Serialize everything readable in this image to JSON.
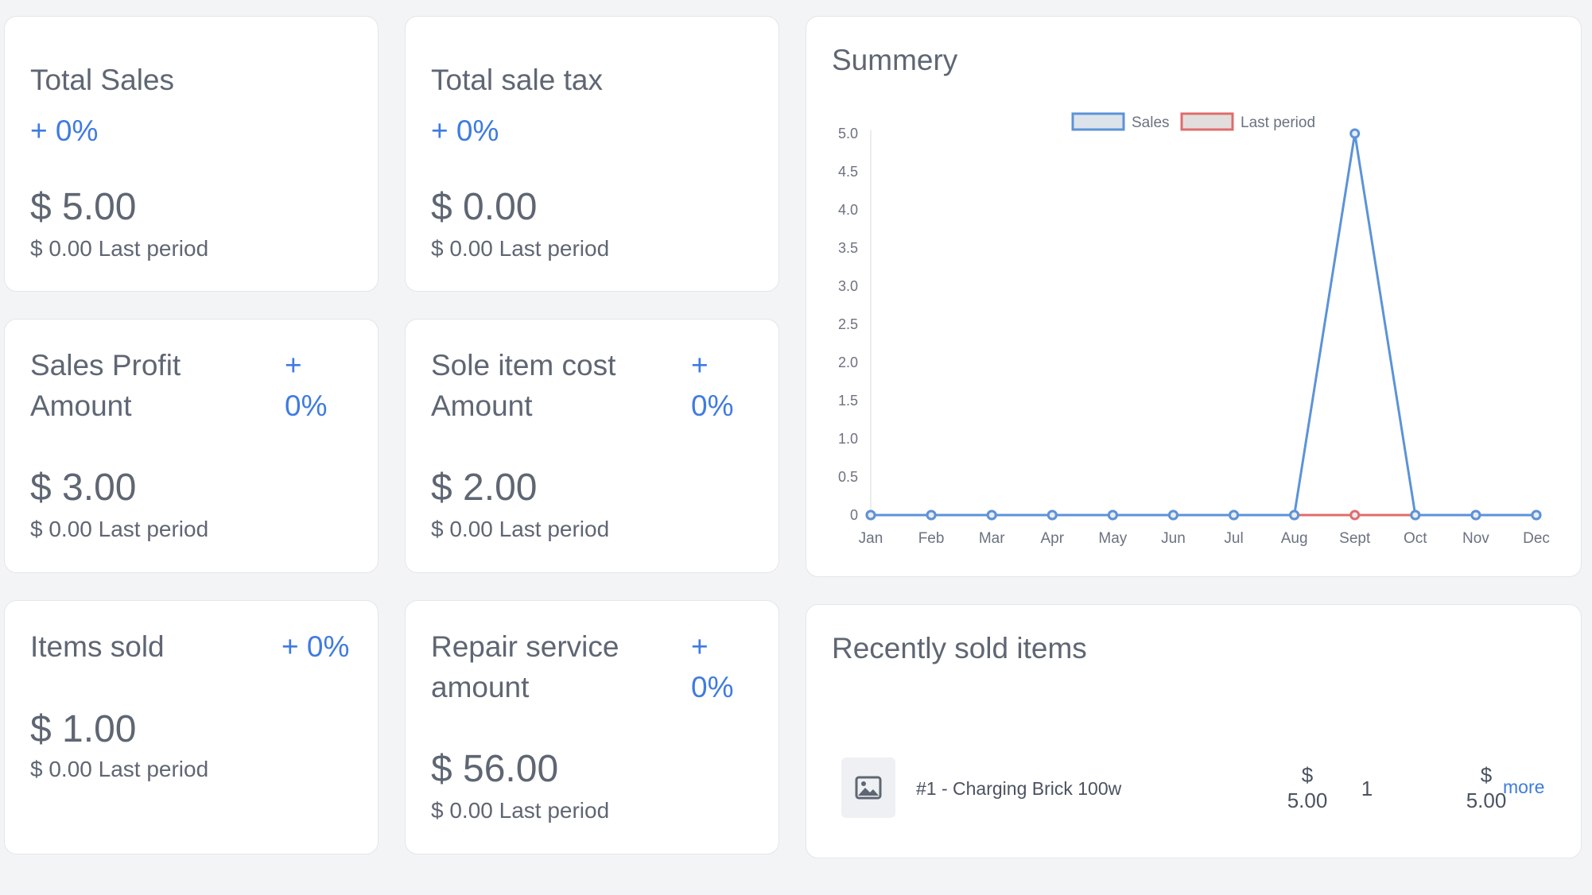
{
  "cards": [
    {
      "title": "Total Sales",
      "change": "+ 0%",
      "amount": "$ 5.00",
      "last_period": "$ 0.00 Last period"
    },
    {
      "title": "Total sale tax",
      "change": "+ 0%",
      "amount": "$ 0.00",
      "last_period": "$ 0.00 Last period"
    },
    {
      "title_line1": "Sales Profit",
      "title_line2": "Amount",
      "change_line1": "+",
      "change_line2": "0%",
      "amount": "$ 3.00",
      "last_period": "$ 0.00 Last period"
    },
    {
      "title_line1": "Sole item cost",
      "title_line2": "Amount",
      "change_line1": "+",
      "change_line2": "0%",
      "amount": "$ 2.00",
      "last_period": "$ 0.00 Last period"
    },
    {
      "title": "Items sold",
      "change": "+ 0%",
      "amount": "$ 1.00",
      "last_period": "$ 0.00 Last period"
    },
    {
      "title_line1": "Repair service",
      "title_line2": "amount",
      "change_line1": "+",
      "change_line2": "0%",
      "amount": "$ 56.00",
      "last_period": "$ 0.00 Last period"
    }
  ],
  "summary": {
    "title": "Summery"
  },
  "chart_data": {
    "type": "line",
    "title": "Summery",
    "categories": [
      "Jan",
      "Feb",
      "Mar",
      "Apr",
      "May",
      "Jun",
      "Jul",
      "Aug",
      "Sept",
      "Oct",
      "Nov",
      "Dec"
    ],
    "series": [
      {
        "name": "Sales",
        "color": "#5b93d8",
        "values": [
          0,
          0,
          0,
          0,
          0,
          0,
          0,
          0,
          5,
          0,
          0,
          0
        ]
      },
      {
        "name": "Last period",
        "color": "#e06c6c",
        "values": [
          0,
          0,
          0,
          0,
          0,
          0,
          0,
          0,
          0,
          0,
          0,
          0
        ]
      }
    ],
    "yticks": [
      "0",
      "0.5",
      "1.0",
      "1.5",
      "2.0",
      "2.5",
      "3.0",
      "3.5",
      "4.0",
      "4.5",
      "5.0"
    ],
    "ylim": [
      0,
      5
    ],
    "legend": "top-center",
    "grid": false
  },
  "recent": {
    "title": "Recently sold items",
    "items": [
      {
        "name": "#1 - Charging Brick 100w",
        "price_symbol": "$",
        "price": "5.00",
        "qty": "1",
        "total_symbol": "$",
        "total": "5.00",
        "more": "more",
        "icon": "image-placeholder-icon"
      }
    ]
  }
}
